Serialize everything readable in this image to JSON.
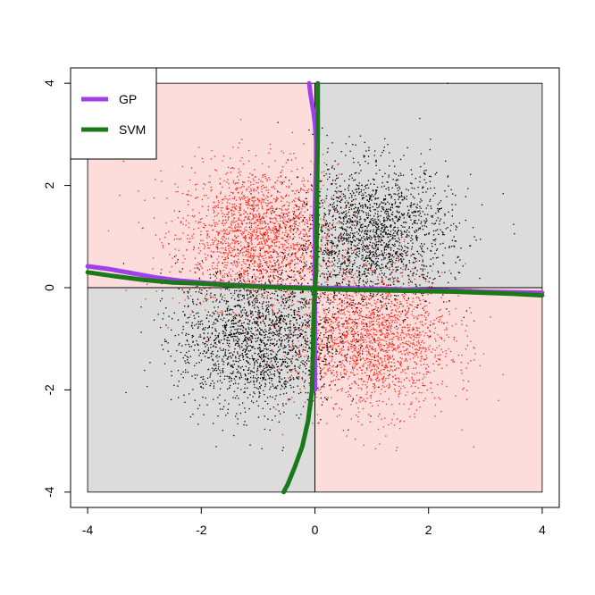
{
  "chart_data": {
    "type": "scatter",
    "title": "",
    "xlabel": "",
    "ylabel": "",
    "xlim": [
      -4.3,
      4.3
    ],
    "ylim": [
      -4.3,
      4.3
    ],
    "x_ticks": [
      -4,
      -2,
      0,
      2,
      4
    ],
    "y_ticks": [
      -4,
      -2,
      0,
      2,
      4
    ],
    "x_tick_labels": [
      "-4",
      "-2",
      "0",
      "2",
      "4"
    ],
    "y_tick_labels": [
      "-4",
      "-2",
      "0",
      "2",
      "4"
    ],
    "grid": false,
    "legend_position": "top-left",
    "regions": [
      {
        "x": [
          -4,
          0
        ],
        "y": [
          0,
          4
        ],
        "color": "#fddcdc"
      },
      {
        "x": [
          0,
          4
        ],
        "y": [
          0,
          4
        ],
        "color": "#dcdcdc"
      },
      {
        "x": [
          -4,
          0
        ],
        "y": [
          -4,
          0
        ],
        "color": "#dcdcdc"
      },
      {
        "x": [
          0,
          4
        ],
        "y": [
          -4,
          0
        ],
        "color": "#fddcdc"
      }
    ],
    "point_clusters": [
      {
        "center": [
          -1,
          1
        ],
        "sd": 0.7,
        "count": 2000,
        "color": "#ff2a1a"
      },
      {
        "center": [
          1,
          -1
        ],
        "sd": 0.7,
        "count": 2000,
        "color": "#ff2a1a"
      },
      {
        "center": [
          1,
          1
        ],
        "sd": 0.7,
        "count": 2000,
        "color": "#000000"
      },
      {
        "center": [
          -1,
          -1
        ],
        "sd": 0.7,
        "count": 2000,
        "color": "#000000"
      }
    ],
    "series": [
      {
        "name": "GP",
        "color": "#a040e8",
        "curves": [
          [
            [
              -0.1,
              4.0
            ],
            [
              -0.08,
              3.8
            ],
            [
              -0.05,
              3.6
            ],
            [
              -0.02,
              3.4
            ],
            [
              0.0,
              3.2
            ],
            [
              0.02,
              2.9
            ],
            [
              0.02,
              2.5
            ],
            [
              0.01,
              2.0
            ],
            [
              0.0,
              1.5
            ],
            [
              0.0,
              1.0
            ],
            [
              0.0,
              0.5
            ],
            [
              0.0,
              0.0
            ],
            [
              0.0,
              -0.5
            ],
            [
              0.0,
              -1.0
            ],
            [
              0.0,
              -1.5
            ],
            [
              0.0,
              -2.0
            ]
          ],
          [
            [
              -4.0,
              0.42
            ],
            [
              -3.6,
              0.36
            ],
            [
              -3.2,
              0.28
            ],
            [
              -2.8,
              0.2
            ],
            [
              -2.4,
              0.14
            ],
            [
              -2.0,
              0.1
            ],
            [
              -1.5,
              0.06
            ],
            [
              -1.0,
              0.03
            ],
            [
              -0.5,
              0.01
            ],
            [
              0.0,
              0.0
            ],
            [
              0.5,
              -0.01
            ],
            [
              1.0,
              -0.02
            ],
            [
              1.5,
              -0.03
            ],
            [
              2.0,
              -0.05
            ],
            [
              2.5,
              -0.06
            ],
            [
              3.0,
              -0.08
            ],
            [
              3.5,
              -0.09
            ],
            [
              4.0,
              -0.1
            ]
          ]
        ]
      },
      {
        "name": "SVM",
        "color": "#1a7a1a",
        "curves": [
          [
            [
              0.05,
              4.0
            ],
            [
              0.05,
              3.0
            ],
            [
              0.04,
              2.0
            ],
            [
              0.03,
              1.0
            ],
            [
              0.02,
              0.3
            ],
            [
              0.0,
              0.0
            ],
            [
              -0.02,
              -0.5
            ],
            [
              -0.03,
              -1.0
            ],
            [
              -0.05,
              -2.0
            ],
            [
              -0.12,
              -2.6
            ],
            [
              -0.22,
              -3.1
            ],
            [
              -0.35,
              -3.5
            ],
            [
              -0.48,
              -3.85
            ],
            [
              -0.55,
              -4.0
            ]
          ],
          [
            [
              -4.0,
              0.3
            ],
            [
              -3.5,
              0.22
            ],
            [
              -3.0,
              0.15
            ],
            [
              -2.5,
              0.1
            ],
            [
              -2.0,
              0.08
            ],
            [
              -1.5,
              0.05
            ],
            [
              -1.0,
              0.02
            ],
            [
              -0.5,
              0.0
            ],
            [
              0.0,
              -0.02
            ],
            [
              0.5,
              -0.04
            ],
            [
              1.0,
              -0.05
            ],
            [
              1.5,
              -0.06
            ],
            [
              2.0,
              -0.07
            ],
            [
              2.5,
              -0.08
            ],
            [
              3.0,
              -0.1
            ],
            [
              3.5,
              -0.12
            ],
            [
              4.0,
              -0.15
            ]
          ]
        ]
      }
    ]
  }
}
